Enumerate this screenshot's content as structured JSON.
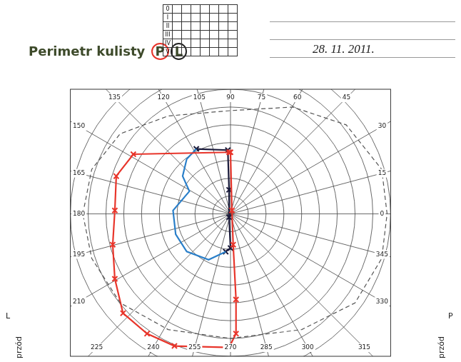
{
  "chart_data": {
    "type": "scatter",
    "title": "Perimetr kulisty",
    "eye_marks": [
      {
        "label": "P",
        "color": "#e8352b"
      },
      {
        "label": "L",
        "color": "#222222"
      }
    ],
    "date": "28. 11. 2011.",
    "key_rows": [
      "0",
      "I",
      "II",
      "III",
      "IV",
      "V"
    ],
    "corner_labels": {
      "left": [
        "L",
        "przód"
      ],
      "right": [
        "P",
        "przód"
      ]
    },
    "xlim": [
      -90,
      90
    ],
    "ylim": [
      -80,
      70
    ],
    "tick_labels": false,
    "grid": true,
    "rings": [
      10,
      20,
      30,
      40,
      50,
      60,
      70,
      80,
      90
    ],
    "meridians": [
      {
        "value": 0,
        "label": "0"
      },
      {
        "value": 15,
        "label": "15"
      },
      {
        "value": 30,
        "label": "30"
      },
      {
        "value": 45,
        "label": "45"
      },
      {
        "value": 60,
        "label": "60"
      },
      {
        "value": 75,
        "label": "75"
      },
      {
        "value": 90,
        "label": "90"
      },
      {
        "value": 105,
        "label": "105"
      },
      {
        "value": 120,
        "label": "120"
      },
      {
        "value": 135,
        "label": "135"
      },
      {
        "value": 150,
        "label": "150"
      },
      {
        "value": 165,
        "label": "165"
      },
      {
        "value": 180,
        "label": "180"
      },
      {
        "value": 195,
        "label": "195"
      },
      {
        "value": 210,
        "label": "210"
      },
      {
        "value": 225,
        "label": "225"
      },
      {
        "value": 240,
        "label": "240"
      },
      {
        "value": 255,
        "label": "255"
      },
      {
        "value": 270,
        "label": "270"
      },
      {
        "value": 285,
        "label": "285"
      },
      {
        "value": 300,
        "label": "300"
      },
      {
        "value": 315,
        "label": "315"
      },
      {
        "value": 330,
        "label": "330"
      },
      {
        "value": 345,
        "label": "345"
      }
    ],
    "series": [
      {
        "color": "#555555",
        "line_style": "dashed",
        "marker": "none",
        "x": [
          -83,
          -78,
          -62,
          -35,
          0,
          35,
          65,
          85,
          88,
          85,
          70,
          40,
          0,
          -35,
          -62,
          -78,
          -83
        ],
        "y": [
          0,
          25,
          45,
          55,
          58,
          60,
          50,
          25,
          0,
          -25,
          -50,
          -65,
          -70,
          -65,
          -50,
          -25,
          0
        ]
      },
      {
        "color": "#e8352b",
        "line_style": "solid",
        "marker": "x",
        "x": [
          -0.8,
          -54.6,
          -64.2,
          -65,
          -66.2,
          -65,
          -60.4,
          -46.9,
          -31.5,
          -0.8,
          3.1,
          3.1,
          1.5,
          0.8,
          0
        ],
        "y": [
          34.6,
          33.5,
          21.2,
          1.9,
          -17.3,
          -36.5,
          -55.8,
          -67.3,
          -74.2,
          -75,
          -67.3,
          -48.1,
          -17.3,
          1.9,
          34.6
        ]
      },
      {
        "color": "#2a7fc9",
        "line_style": "solid",
        "marker": "none",
        "x": [
          -19.2,
          -24.6,
          -26.9,
          -23.1,
          -32.3,
          -30.8,
          -24.6,
          -12.3,
          -2.7
        ],
        "y": [
          36.5,
          30.8,
          21.2,
          12.7,
          1.9,
          -11.5,
          -21.2,
          -25.8,
          -21.2
        ]
      },
      {
        "color": "#1a1a3a",
        "line_style": "solid",
        "marker": "x",
        "x": [
          -19.2,
          -1.5,
          -0.8,
          -0.8,
          0,
          -2.7
        ],
        "y": [
          36.5,
          35.8,
          13.5,
          -1.9,
          -19.2,
          -21.2
        ]
      }
    ]
  }
}
